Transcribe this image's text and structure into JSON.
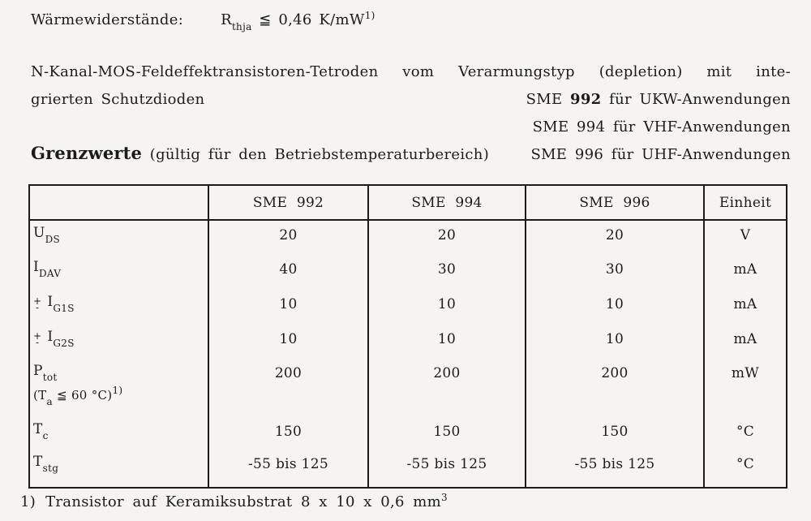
{
  "page": {
    "thermal_label": "Wärmewiderstände:",
    "formula": {
      "sym": "R",
      "sub": "thja",
      "rest": " ≦ 0,46 K/mW",
      "sup": "1)"
    },
    "para_line1": "N-Kanal-MOS-Feldeffektransistoren-Tetroden vom Verarmungstyp (depletion) mit inte-",
    "para_line2": "grierten Schutzdioden",
    "sme_items": [
      {
        "name": "SME",
        "num": "992",
        "rest": "für UKW-Anwendungen"
      },
      {
        "name": "SME",
        "num": "994",
        "rest": "für VHF-Anwendungen"
      },
      {
        "name": "SME",
        "num": "996",
        "rest": "für UHF-Anwendungen"
      }
    ],
    "grenzwerte_bold": "Grenzwerte",
    "grenzwerte_rest": "(gültig für den Betriebstemperaturbereich)",
    "footnote": {
      "marker": "1)",
      "text": "Transistor auf Keramiksubstrat 8 x 10 x 0,6 mm",
      "sup": "3"
    }
  },
  "table": {
    "headers": [
      "",
      "SME 992",
      "SME 994",
      "SME 996",
      "Einheit"
    ],
    "rows": [
      {
        "sym": "U",
        "sub": "DS",
        "v1": "20",
        "v2": "20",
        "v3": "20",
        "unit": "V"
      },
      {
        "sym": "I",
        "sub": "DAV",
        "v1": "40",
        "v2": "30",
        "v3": "30",
        "unit": "mA"
      },
      {
        "sign_top": "+",
        "sign_bot": "-",
        "sym": "I",
        "sub": "G1S",
        "v1": "10",
        "v2": "10",
        "v3": "10",
        "unit": "mA"
      },
      {
        "sign_top": "+",
        "sign_bot": "-",
        "sym": "I",
        "sub": "G2S",
        "v1": "10",
        "v2": "10",
        "v3": "10",
        "unit": "mA"
      },
      {
        "sym": "P",
        "sub": "tot",
        "note_pre": "(T",
        "note_sub": "a",
        "note_mid": " ≦ 60 °C)",
        "note_sup": "1)",
        "v1": "200",
        "v2": "200",
        "v3": "200",
        "unit": "mW"
      },
      {
        "sym": "T",
        "sub": "c",
        "v1": "150",
        "v2": "150",
        "v3": "150",
        "unit": "°C"
      },
      {
        "sym": "T",
        "sub": "stg",
        "v1": "-55 bis 125",
        "v2": "-55 bis 125",
        "v3": "-55 bis 125",
        "unit": "°C"
      }
    ]
  },
  "colors": {
    "text": "#1b1b1b",
    "background": "#f5f4f0",
    "border": "#1b1b1b"
  }
}
